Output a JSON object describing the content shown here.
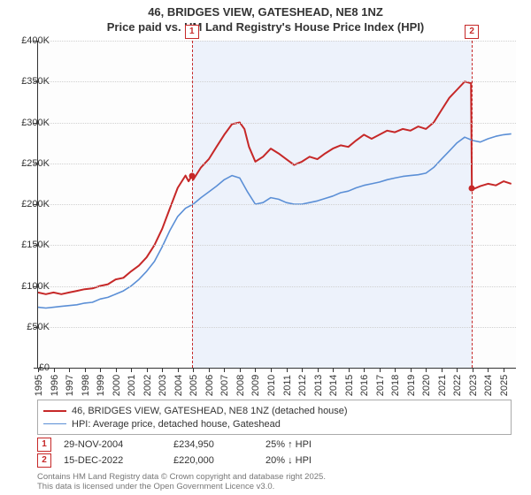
{
  "title_line1": "46, BRIDGES VIEW, GATESHEAD, NE8 1NZ",
  "title_line2": "Price paid vs. HM Land Registry's House Price Index (HPI)",
  "chart": {
    "type": "line",
    "ylim": [
      0,
      400000
    ],
    "ytick_step": 50000,
    "ytick_labels": [
      "£0",
      "£50K",
      "£100K",
      "£150K",
      "£200K",
      "£250K",
      "£300K",
      "£350K",
      "£400K"
    ],
    "x_years": [
      1995,
      1996,
      1997,
      1998,
      1999,
      2000,
      2001,
      2002,
      2003,
      2004,
      2005,
      2006,
      2007,
      2008,
      2009,
      2010,
      2011,
      2012,
      2013,
      2014,
      2015,
      2016,
      2017,
      2018,
      2019,
      2020,
      2021,
      2022,
      2023,
      2024,
      2025
    ],
    "xlim": [
      1995,
      2025.8
    ],
    "shade_start_year": 2004.91,
    "shade_end_year": 2022.96,
    "background_color": "#fdfdfd",
    "grid_color": "#d0d0d0",
    "series": [
      {
        "key": "price_paid",
        "label": "46, BRIDGES VIEW, GATESHEAD, NE8 1NZ (detached house)",
        "color": "#c62828",
        "width": 2.0,
        "points": [
          [
            1995.0,
            92000
          ],
          [
            1995.5,
            90000
          ],
          [
            1996.0,
            92000
          ],
          [
            1996.5,
            90000
          ],
          [
            1997.0,
            92000
          ],
          [
            1997.5,
            94000
          ],
          [
            1998.0,
            96000
          ],
          [
            1998.5,
            97000
          ],
          [
            1999.0,
            100000
          ],
          [
            1999.5,
            102000
          ],
          [
            2000.0,
            108000
          ],
          [
            2000.5,
            110000
          ],
          [
            2001.0,
            118000
          ],
          [
            2001.5,
            125000
          ],
          [
            2002.0,
            135000
          ],
          [
            2002.5,
            150000
          ],
          [
            2003.0,
            170000
          ],
          [
            2003.5,
            195000
          ],
          [
            2004.0,
            220000
          ],
          [
            2004.5,
            235000
          ],
          [
            2004.7,
            228000
          ],
          [
            2004.91,
            234950
          ],
          [
            2005.0,
            230000
          ],
          [
            2005.5,
            245000
          ],
          [
            2006.0,
            255000
          ],
          [
            2006.5,
            270000
          ],
          [
            2007.0,
            285000
          ],
          [
            2007.5,
            298000
          ],
          [
            2008.0,
            300000
          ],
          [
            2008.3,
            292000
          ],
          [
            2008.6,
            270000
          ],
          [
            2009.0,
            252000
          ],
          [
            2009.5,
            258000
          ],
          [
            2010.0,
            268000
          ],
          [
            2010.5,
            262000
          ],
          [
            2011.0,
            255000
          ],
          [
            2011.5,
            248000
          ],
          [
            2012.0,
            252000
          ],
          [
            2012.5,
            258000
          ],
          [
            2013.0,
            255000
          ],
          [
            2013.5,
            262000
          ],
          [
            2014.0,
            268000
          ],
          [
            2014.5,
            272000
          ],
          [
            2015.0,
            270000
          ],
          [
            2015.5,
            278000
          ],
          [
            2016.0,
            285000
          ],
          [
            2016.5,
            280000
          ],
          [
            2017.0,
            285000
          ],
          [
            2017.5,
            290000
          ],
          [
            2018.0,
            288000
          ],
          [
            2018.5,
            292000
          ],
          [
            2019.0,
            290000
          ],
          [
            2019.5,
            295000
          ],
          [
            2020.0,
            292000
          ],
          [
            2020.5,
            300000
          ],
          [
            2021.0,
            315000
          ],
          [
            2021.5,
            330000
          ],
          [
            2022.0,
            340000
          ],
          [
            2022.5,
            350000
          ],
          [
            2022.9,
            348000
          ],
          [
            2022.96,
            220000
          ],
          [
            2023.0,
            218000
          ],
          [
            2023.5,
            222000
          ],
          [
            2024.0,
            225000
          ],
          [
            2024.5,
            223000
          ],
          [
            2025.0,
            228000
          ],
          [
            2025.5,
            225000
          ]
        ]
      },
      {
        "key": "hpi",
        "label": "HPI: Average price, detached house, Gateshead",
        "color": "#5b8fd6",
        "width": 1.6,
        "points": [
          [
            1995.0,
            74000
          ],
          [
            1995.5,
            73000
          ],
          [
            1996.0,
            74000
          ],
          [
            1996.5,
            75000
          ],
          [
            1997.0,
            76000
          ],
          [
            1997.5,
            77000
          ],
          [
            1998.0,
            79000
          ],
          [
            1998.5,
            80000
          ],
          [
            1999.0,
            84000
          ],
          [
            1999.5,
            86000
          ],
          [
            2000.0,
            90000
          ],
          [
            2000.5,
            94000
          ],
          [
            2001.0,
            100000
          ],
          [
            2001.5,
            108000
          ],
          [
            2002.0,
            118000
          ],
          [
            2002.5,
            130000
          ],
          [
            2003.0,
            148000
          ],
          [
            2003.5,
            168000
          ],
          [
            2004.0,
            185000
          ],
          [
            2004.5,
            195000
          ],
          [
            2005.0,
            200000
          ],
          [
            2005.5,
            208000
          ],
          [
            2006.0,
            215000
          ],
          [
            2006.5,
            222000
          ],
          [
            2007.0,
            230000
          ],
          [
            2007.5,
            235000
          ],
          [
            2008.0,
            232000
          ],
          [
            2008.5,
            215000
          ],
          [
            2009.0,
            200000
          ],
          [
            2009.5,
            202000
          ],
          [
            2010.0,
            208000
          ],
          [
            2010.5,
            206000
          ],
          [
            2011.0,
            202000
          ],
          [
            2011.5,
            200000
          ],
          [
            2012.0,
            200000
          ],
          [
            2012.5,
            202000
          ],
          [
            2013.0,
            204000
          ],
          [
            2013.5,
            207000
          ],
          [
            2014.0,
            210000
          ],
          [
            2014.5,
            214000
          ],
          [
            2015.0,
            216000
          ],
          [
            2015.5,
            220000
          ],
          [
            2016.0,
            223000
          ],
          [
            2016.5,
            225000
          ],
          [
            2017.0,
            227000
          ],
          [
            2017.5,
            230000
          ],
          [
            2018.0,
            232000
          ],
          [
            2018.5,
            234000
          ],
          [
            2019.0,
            235000
          ],
          [
            2019.5,
            236000
          ],
          [
            2020.0,
            238000
          ],
          [
            2020.5,
            245000
          ],
          [
            2021.0,
            255000
          ],
          [
            2021.5,
            265000
          ],
          [
            2022.0,
            275000
          ],
          [
            2022.5,
            282000
          ],
          [
            2023.0,
            278000
          ],
          [
            2023.5,
            276000
          ],
          [
            2024.0,
            280000
          ],
          [
            2024.5,
            283000
          ],
          [
            2025.0,
            285000
          ],
          [
            2025.5,
            286000
          ]
        ]
      }
    ],
    "events": [
      {
        "n": "1",
        "year": 2004.91,
        "date": "29-NOV-2004",
        "price": "£234,950",
        "delta": "25% ↑ HPI",
        "y_value": 234950
      },
      {
        "n": "2",
        "year": 2022.96,
        "date": "15-DEC-2022",
        "price": "£220,000",
        "delta": "20% ↓ HPI",
        "y_value": 220000
      }
    ]
  },
  "footnote_line1": "Contains HM Land Registry data © Crown copyright and database right 2025.",
  "footnote_line2": "This data is licensed under the Open Government Licence v3.0."
}
